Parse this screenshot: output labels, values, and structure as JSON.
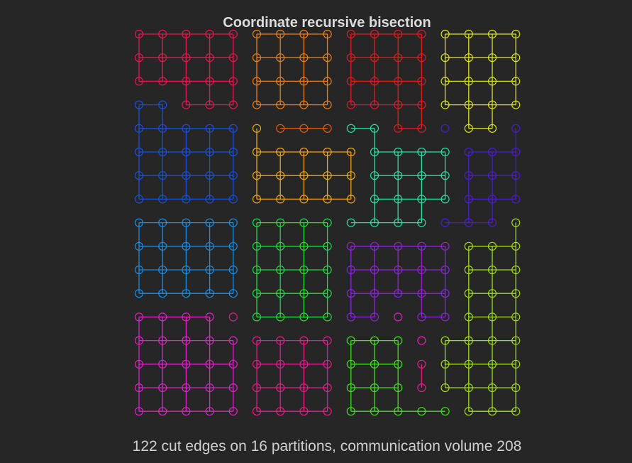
{
  "title": "Coordinate recursive bisection",
  "caption": "122 cut edges on 16 partitions, communication volume 208",
  "grid": {
    "cols": 17,
    "rows": 17,
    "assignment": [
      "AAAAABBBBCCCCDDDD",
      "AAAAABBBBCCCCDDDD",
      "AAAAABBBBCCCCDDDD",
      "EEAAABBBBCCCCDDDD",
      "EEEEEFGGGHHCCIDDI",
      "EEEEEFFFFFHHHHIII",
      "EEEEEFFFFFHHHHIII",
      "EEEEEFFFFFHHHHIII",
      "JJJJJKKKKHHHHIIIL",
      "JJJJJKKKKMMMMMLLL",
      "JJJJJKKKKMMMMMLLL",
      "JJJJJKKKKMMMMMLLL",
      "NNNNOKKKKMMNMMLLL",
      "NNNNNOOOOPPPNLLLL",
      "NNNNNOOOOPPPOLLLL",
      "NNNNNOOOOPPPOLLLL",
      "NNNNNOOOOPPPPPLLL"
    ]
  },
  "partition_colors": {
    "A": "#e8174f",
    "B": "#f07d15",
    "C": "#e5181f",
    "D": "#d9e21c",
    "E": "#1950d8",
    "F": "#f0a418",
    "G": "#e65a10",
    "H": "#27e0a6",
    "I": "#4a1fc8",
    "J": "#1d8be0",
    "K": "#22dc3a",
    "L": "#9fdc1e",
    "M": "#8d24dc",
    "N": "#dc22c8",
    "O": "#e81a8c",
    "P": "#3fe01c"
  }
}
